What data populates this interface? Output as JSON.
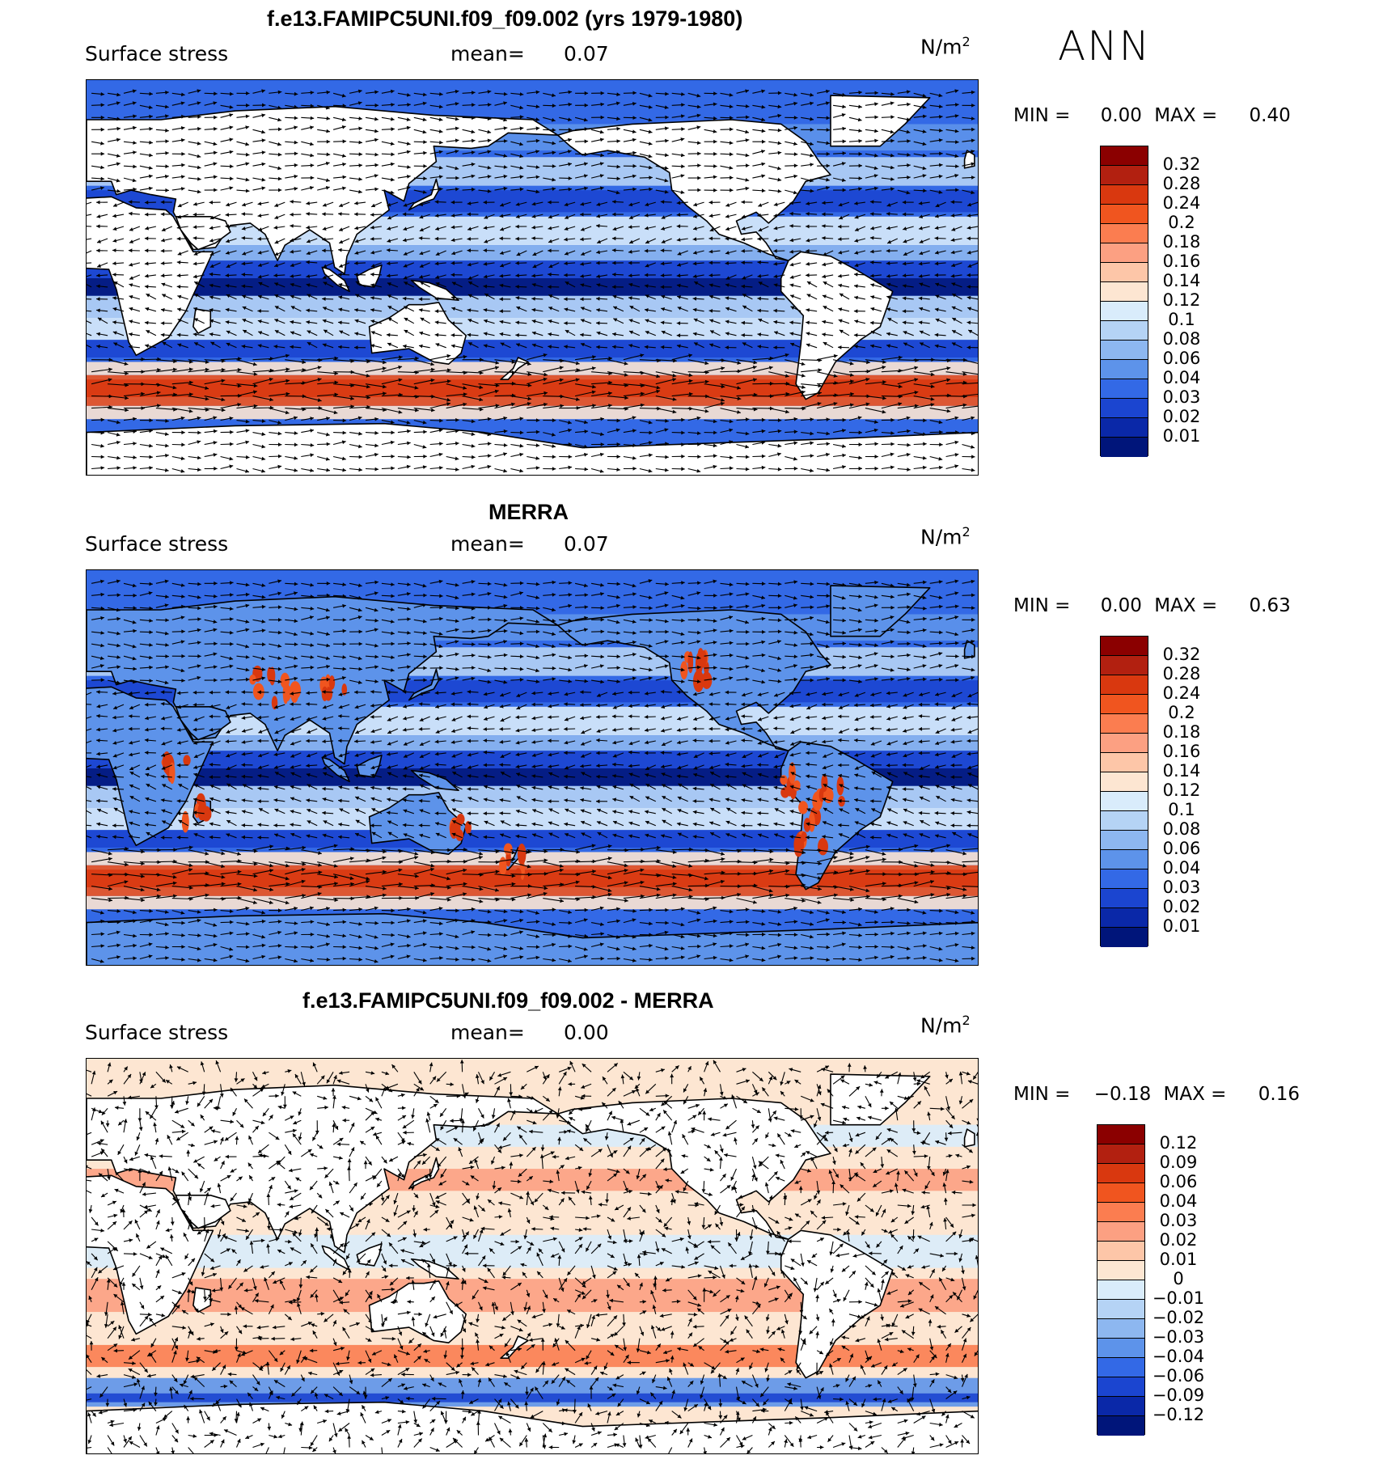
{
  "season": "ANN",
  "units_base": "N/m",
  "units_exp": "2",
  "panels": [
    {
      "title": "f.e13.FAMIPC5UNI.f09_f09.002 (yrs 1979-1980)",
      "variable": "Surface stress",
      "mean_label": "mean=",
      "mean_value": "0.07",
      "min_label": "MIN =",
      "min_value": "0.00",
      "max_label": "MAX =",
      "max_value": "0.40",
      "colorbar_labels": [
        "0.32",
        "0.28",
        "0.24",
        "0.2",
        "0.18",
        "0.16",
        "0.14",
        "0.12",
        "0.1",
        "0.08",
        "0.06",
        "0.04",
        "0.03",
        "0.02",
        "0.01"
      ],
      "colorbar_colors": [
        "#8b0000",
        "#b22010",
        "#d9380f",
        "#f0551f",
        "#fb7d50",
        "#fca082",
        "#fdc6a8",
        "#fde6d2",
        "#d9ecfb",
        "#b5d3f5",
        "#8db7f0",
        "#5d93ea",
        "#3369e6",
        "#1b45d0",
        "#0a28a8",
        "#00157a"
      ]
    },
    {
      "title": "MERRA",
      "variable": "Surface stress",
      "mean_label": "mean=",
      "mean_value": "0.07",
      "min_label": "MIN =",
      "min_value": "0.00",
      "max_label": "MAX =",
      "max_value": "0.63",
      "colorbar_labels": [
        "0.32",
        "0.28",
        "0.24",
        "0.2",
        "0.18",
        "0.16",
        "0.14",
        "0.12",
        "0.1",
        "0.08",
        "0.06",
        "0.04",
        "0.03",
        "0.02",
        "0.01"
      ],
      "colorbar_colors": [
        "#8b0000",
        "#b22010",
        "#d9380f",
        "#f0551f",
        "#fb7d50",
        "#fca082",
        "#fdc6a8",
        "#fde6d2",
        "#d9ecfb",
        "#b5d3f5",
        "#8db7f0",
        "#5d93ea",
        "#3369e6",
        "#1b45d0",
        "#0a28a8",
        "#00157a"
      ]
    },
    {
      "title": "f.e13.FAMIPC5UNI.f09_f09.002 - MERRA",
      "variable": "Surface stress",
      "mean_label": "mean=",
      "mean_value": "0.00",
      "min_label": "MIN =",
      "min_value": "−0.18",
      "max_label": "MAX =",
      "max_value": "0.16",
      "colorbar_labels": [
        "0.12",
        "0.09",
        "0.06",
        "0.04",
        "0.03",
        "0.02",
        "0.01",
        "0",
        "−0.01",
        "−0.02",
        "−0.03",
        "−0.04",
        "−0.06",
        "−0.09",
        "−0.12"
      ],
      "colorbar_colors": [
        "#8b0000",
        "#b22010",
        "#d9380f",
        "#f0551f",
        "#fb7d50",
        "#fca082",
        "#fdc6a8",
        "#fde6d2",
        "#d9ecfb",
        "#b5d3f5",
        "#8db7f0",
        "#5d93ea",
        "#3369e6",
        "#1b45d0",
        "#0a28a8",
        "#00157a"
      ]
    }
  ]
}
